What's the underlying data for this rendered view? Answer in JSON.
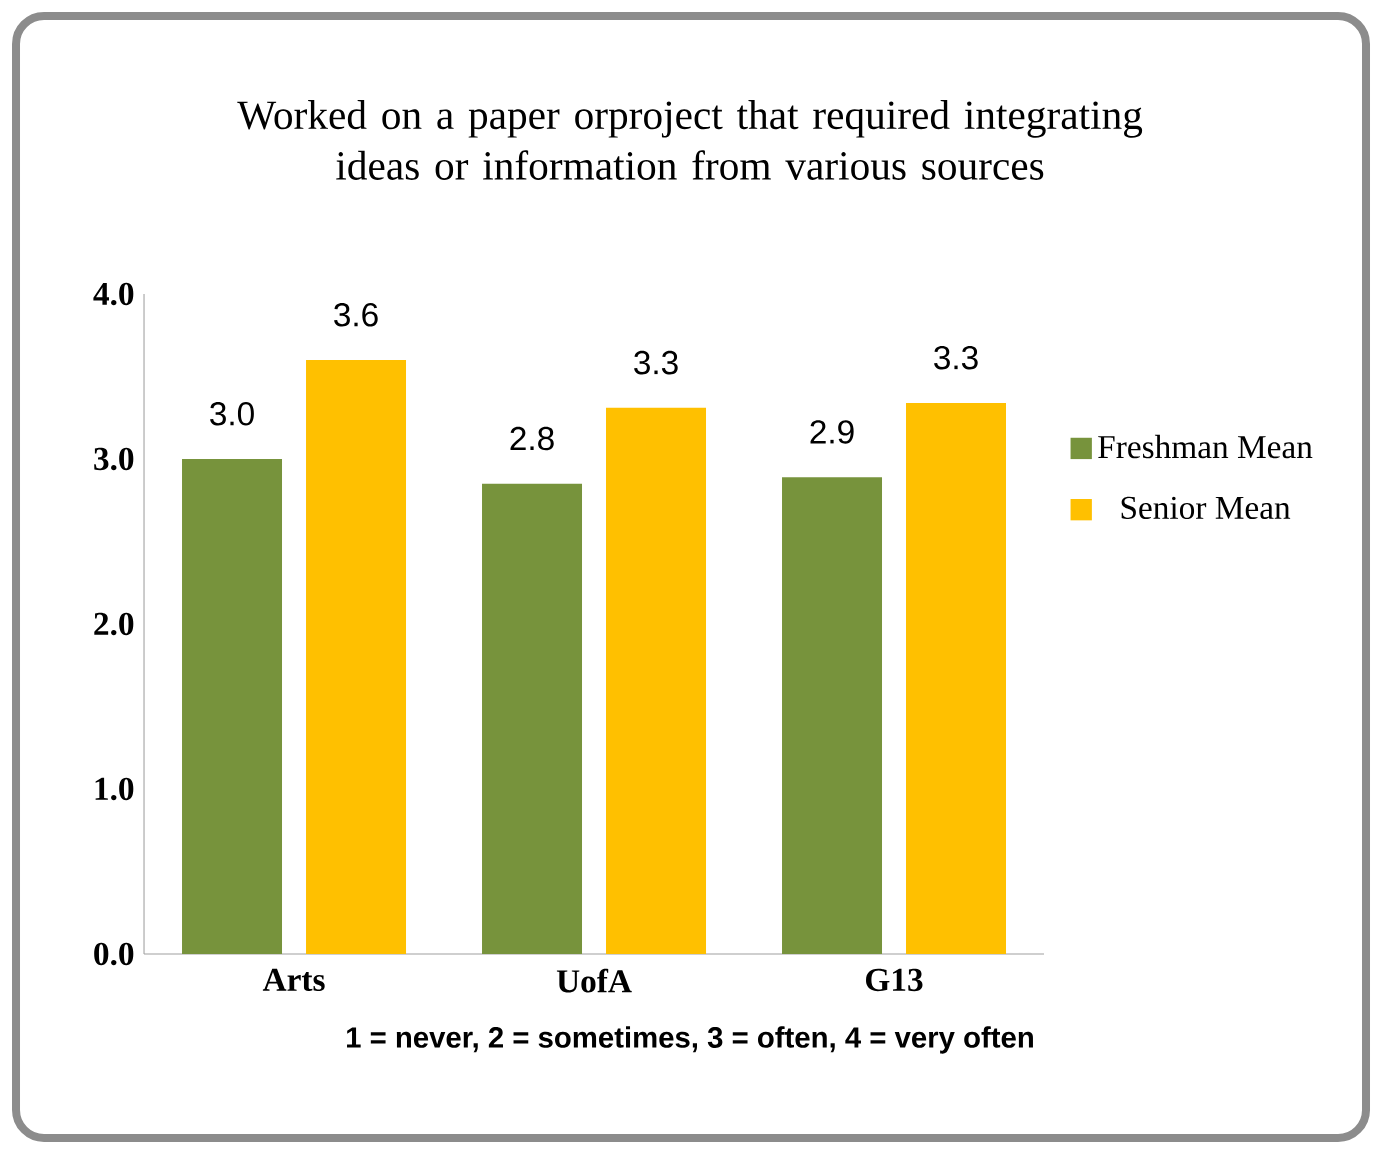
{
  "chart_data": {
    "type": "bar",
    "title": "Worked on a paper orproject that required integrating ideas or information from various sources",
    "categories": [
      "Arts",
      "UofA",
      "G13"
    ],
    "series": [
      {
        "name": "Freshman Mean",
        "color": "#77933c",
        "values": [
          3.0,
          2.85,
          2.89
        ],
        "value_labels": [
          "3.0",
          "2.8",
          "2.9"
        ]
      },
      {
        "name": "Senior Mean",
        "color": "#ffc000",
        "values": [
          3.6,
          3.31,
          3.34
        ],
        "value_labels": [
          "3.6",
          "3.3",
          "3.3"
        ]
      }
    ],
    "ylim": [
      0,
      4
    ],
    "yticks": [
      {
        "value": 0,
        "label": "0.0"
      },
      {
        "value": 1,
        "label": "1.0"
      },
      {
        "value": 2,
        "label": "2.0"
      },
      {
        "value": 3,
        "label": "3.0"
      },
      {
        "value": 4,
        "label": "4.0"
      }
    ],
    "legend": "right",
    "annotations": [
      "1 = never, 2 = sometimes, 3 = often, 4 = very often"
    ]
  }
}
